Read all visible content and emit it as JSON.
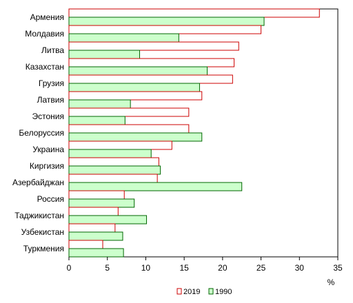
{
  "chart_data": {
    "type": "bar",
    "orientation": "horizontal",
    "categories": [
      "Армения",
      "Молдавия",
      "Литва",
      "Казахстан",
      "Грузия",
      "Латвия",
      "Эстония",
      "Белоруссия",
      "Украина",
      "Киргизия",
      "Азербайджан",
      "Россия",
      "Таджикистан",
      "Узбекистан",
      "Туркмения"
    ],
    "series": [
      {
        "name": "2019",
        "color": "#cc0000",
        "fill": "#ffffff",
        "values": [
          32.6,
          25.0,
          22.1,
          21.5,
          21.3,
          17.3,
          15.6,
          15.6,
          13.4,
          11.7,
          11.5,
          7.2,
          6.4,
          6.0,
          4.4
        ]
      },
      {
        "name": "1990",
        "color": "#006600",
        "fill": "#ccffcc",
        "values": [
          25.4,
          14.3,
          9.2,
          18.0,
          17.0,
          8.0,
          7.3,
          17.3,
          10.7,
          11.9,
          22.5,
          8.5,
          10.1,
          7.0,
          7.1
        ]
      }
    ],
    "xlim": [
      0,
      35
    ],
    "xticks": [
      0,
      5,
      10,
      15,
      20,
      25,
      30,
      35
    ],
    "xunit": "%",
    "grid": false,
    "legend_position": "bottom"
  }
}
